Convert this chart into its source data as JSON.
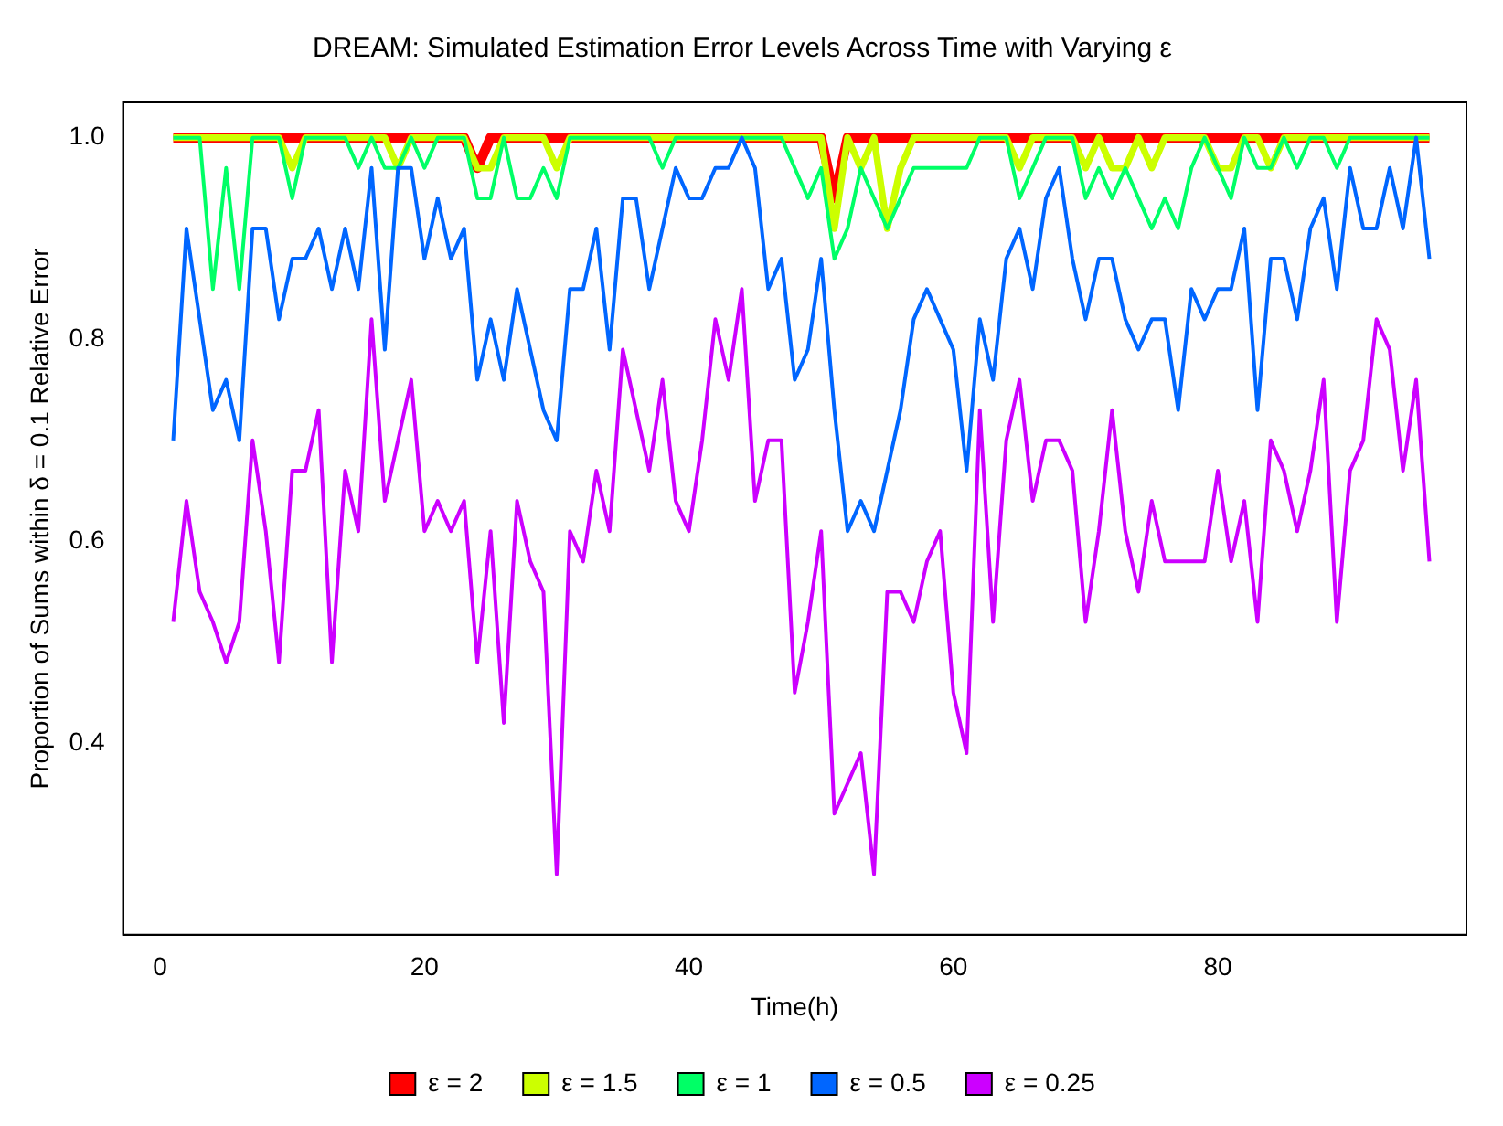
{
  "chart_data": {
    "type": "line",
    "title": "DREAM: Simulated Estimation Error Levels Across Time with Varying ε",
    "xlabel": "Time(h)",
    "ylabel": "Proportion of Sums within δ = 0.1 Relative Error",
    "x": [
      1,
      2,
      3,
      4,
      5,
      6,
      7,
      8,
      9,
      10,
      11,
      12,
      13,
      14,
      15,
      16,
      17,
      18,
      19,
      20,
      21,
      22,
      23,
      24,
      25,
      26,
      27,
      28,
      29,
      30,
      31,
      32,
      33,
      34,
      35,
      36,
      37,
      38,
      39,
      40,
      41,
      42,
      43,
      44,
      45,
      46,
      47,
      48,
      49,
      50,
      51,
      52,
      53,
      54,
      55,
      56,
      57,
      58,
      59,
      60,
      61,
      62,
      63,
      64,
      65,
      66,
      67,
      68,
      69,
      70,
      71,
      72,
      73,
      74,
      75,
      76,
      77,
      78,
      79,
      80,
      81,
      82,
      83,
      84,
      85,
      86,
      87,
      88,
      89,
      90,
      91,
      92,
      93,
      94,
      95,
      96
    ],
    "xlim": [
      -2.8,
      98.8
    ],
    "xticks": [
      0,
      20,
      40,
      60,
      80
    ],
    "ylim": [
      0.21,
      1.035
    ],
    "yticks": [
      {
        "value": 0.4,
        "label": "0.4"
      },
      {
        "value": 0.6,
        "label": "0.6"
      },
      {
        "value": 0.8,
        "label": "0.8"
      },
      {
        "value": 1,
        "label": "1.0"
      }
    ],
    "legend": "bottom",
    "marker": "none",
    "series": [
      {
        "name": "ε = 2",
        "color": "#ff0000",
        "values": [
          1,
          1,
          1,
          1,
          1,
          1,
          1,
          1,
          1,
          1,
          1,
          1,
          1,
          1,
          1,
          1,
          1,
          1,
          1,
          1,
          1,
          1,
          1,
          0.97,
          1,
          1,
          1,
          1,
          1,
          1,
          1,
          1,
          1,
          1,
          1,
          1,
          1,
          1,
          1,
          1,
          1,
          1,
          1,
          1,
          1,
          1,
          1,
          1,
          1,
          1,
          0.94,
          1,
          1,
          1,
          1,
          1,
          1,
          1,
          1,
          1,
          1,
          1,
          1,
          1,
          1,
          1,
          1,
          1,
          1,
          1,
          1,
          1,
          1,
          1,
          1,
          1,
          1,
          1,
          1,
          1,
          1,
          1,
          1,
          1,
          1,
          1,
          1,
          1,
          1,
          1,
          1,
          1,
          1,
          1,
          1,
          1
        ]
      },
      {
        "name": "ε = 1.5",
        "color": "#ccff00",
        "values": [
          1,
          1,
          1,
          1,
          1,
          1,
          1,
          1,
          1,
          0.97,
          1,
          1,
          1,
          1,
          1,
          1,
          1,
          0.97,
          1,
          1,
          1,
          1,
          1,
          0.97,
          0.97,
          1,
          1,
          1,
          1,
          0.97,
          1,
          1,
          1,
          1,
          1,
          1,
          1,
          1,
          1,
          1,
          1,
          1,
          1,
          1,
          1,
          1,
          1,
          1,
          1,
          1,
          0.91,
          1,
          0.97,
          1,
          0.91,
          0.97,
          1,
          1,
          1,
          1,
          1,
          1,
          1,
          1,
          0.97,
          1,
          1,
          1,
          1,
          0.97,
          1,
          0.97,
          0.97,
          1,
          0.97,
          1,
          1,
          1,
          1,
          0.97,
          0.97,
          1,
          1,
          0.97,
          1,
          1,
          1,
          1,
          1,
          1,
          1,
          1,
          1,
          1,
          1,
          1
        ]
      },
      {
        "name": "ε = 1",
        "color": "#00ff66",
        "values": [
          1,
          1,
          1,
          0.85,
          0.97,
          0.85,
          1,
          1,
          1,
          0.94,
          1,
          1,
          1,
          1,
          0.97,
          1,
          0.97,
          0.97,
          1,
          0.97,
          1,
          1,
          1,
          0.94,
          0.94,
          1,
          0.94,
          0.94,
          0.97,
          0.94,
          1,
          1,
          1,
          1,
          1,
          1,
          1,
          0.97,
          1,
          1,
          1,
          1,
          1,
          1,
          1,
          1,
          1,
          0.97,
          0.94,
          0.97,
          0.88,
          0.91,
          0.97,
          0.94,
          0.91,
          0.94,
          0.97,
          0.97,
          0.97,
          0.97,
          0.97,
          1,
          1,
          1,
          0.94,
          0.97,
          1,
          1,
          1,
          0.94,
          0.97,
          0.94,
          0.97,
          0.94,
          0.91,
          0.94,
          0.91,
          0.97,
          1,
          0.97,
          0.94,
          1,
          0.97,
          0.97,
          1,
          0.97,
          1,
          1,
          0.97,
          1,
          1,
          1,
          1,
          1,
          1,
          1
        ]
      },
      {
        "name": "ε = 0.5",
        "color": "#0066ff",
        "values": [
          0.7,
          0.91,
          0.82,
          0.73,
          0.76,
          0.7,
          0.91,
          0.91,
          0.82,
          0.88,
          0.88,
          0.91,
          0.85,
          0.91,
          0.85,
          0.97,
          0.79,
          0.97,
          0.97,
          0.88,
          0.94,
          0.88,
          0.91,
          0.76,
          0.82,
          0.76,
          0.85,
          0.79,
          0.73,
          0.7,
          0.85,
          0.85,
          0.91,
          0.79,
          0.94,
          0.94,
          0.85,
          0.91,
          0.97,
          0.94,
          0.94,
          0.97,
          0.97,
          1,
          0.97,
          0.85,
          0.88,
          0.76,
          0.79,
          0.88,
          0.73,
          0.61,
          0.64,
          0.61,
          0.67,
          0.73,
          0.82,
          0.85,
          0.82,
          0.79,
          0.67,
          0.82,
          0.76,
          0.88,
          0.91,
          0.85,
          0.94,
          0.97,
          0.88,
          0.82,
          0.88,
          0.88,
          0.82,
          0.79,
          0.82,
          0.82,
          0.73,
          0.85,
          0.82,
          0.85,
          0.85,
          0.91,
          0.73,
          0.88,
          0.88,
          0.82,
          0.91,
          0.94,
          0.85,
          0.97,
          0.91,
          0.91,
          0.97,
          0.91,
          1,
          0.88
        ]
      },
      {
        "name": "ε = 0.25",
        "color": "#cc00ff",
        "values": [
          0.52,
          0.64,
          0.55,
          0.52,
          0.48,
          0.52,
          0.7,
          0.61,
          0.48,
          0.67,
          0.67,
          0.73,
          0.48,
          0.67,
          0.61,
          0.82,
          0.64,
          0.7,
          0.76,
          0.61,
          0.64,
          0.61,
          0.64,
          0.48,
          0.61,
          0.42,
          0.64,
          0.58,
          0.55,
          0.27,
          0.61,
          0.58,
          0.67,
          0.61,
          0.79,
          0.73,
          0.67,
          0.76,
          0.64,
          0.61,
          0.7,
          0.82,
          0.76,
          0.85,
          0.64,
          0.7,
          0.7,
          0.45,
          0.52,
          0.61,
          0.33,
          0.36,
          0.39,
          0.27,
          0.55,
          0.55,
          0.52,
          0.58,
          0.61,
          0.45,
          0.39,
          0.73,
          0.52,
          0.7,
          0.76,
          0.64,
          0.7,
          0.7,
          0.67,
          0.52,
          0.61,
          0.73,
          0.61,
          0.55,
          0.64,
          0.58,
          0.58,
          0.58,
          0.58,
          0.67,
          0.58,
          0.64,
          0.52,
          0.7,
          0.67,
          0.61,
          0.67,
          0.76,
          0.52,
          0.67,
          0.7,
          0.82,
          0.79,
          0.67,
          0.76,
          0.58
        ]
      }
    ]
  }
}
